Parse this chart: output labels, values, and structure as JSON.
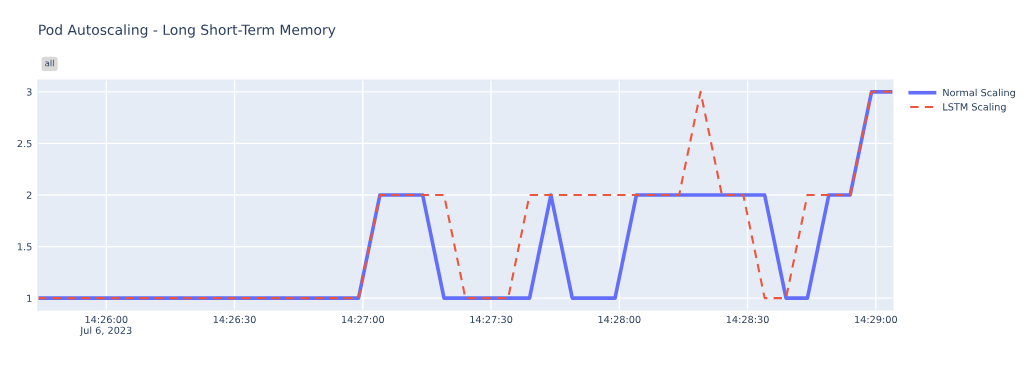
{
  "chart_data": {
    "type": "line",
    "title": "Pod Autoscaling - Long Short-Term Memory",
    "annotations": [
      "all"
    ],
    "x": [
      "2023-07-06T14:25:44",
      "2023-07-06T14:25:49",
      "2023-07-06T14:25:54",
      "2023-07-06T14:25:59",
      "2023-07-06T14:26:04",
      "2023-07-06T14:26:09",
      "2023-07-06T14:26:14",
      "2023-07-06T14:26:19",
      "2023-07-06T14:26:24",
      "2023-07-06T14:26:29",
      "2023-07-06T14:26:34",
      "2023-07-06T14:26:39",
      "2023-07-06T14:26:44",
      "2023-07-06T14:26:49",
      "2023-07-06T14:26:54",
      "2023-07-06T14:26:59",
      "2023-07-06T14:27:04",
      "2023-07-06T14:27:09",
      "2023-07-06T14:27:14",
      "2023-07-06T14:27:19",
      "2023-07-06T14:27:24",
      "2023-07-06T14:27:29",
      "2023-07-06T14:27:34",
      "2023-07-06T14:27:39",
      "2023-07-06T14:27:44",
      "2023-07-06T14:27:49",
      "2023-07-06T14:27:54",
      "2023-07-06T14:27:59",
      "2023-07-06T14:28:04",
      "2023-07-06T14:28:09",
      "2023-07-06T14:28:14",
      "2023-07-06T14:28:19",
      "2023-07-06T14:28:24",
      "2023-07-06T14:28:29",
      "2023-07-06T14:28:34",
      "2023-07-06T14:28:39",
      "2023-07-06T14:28:44",
      "2023-07-06T14:28:49",
      "2023-07-06T14:28:54",
      "2023-07-06T14:28:59",
      "2023-07-06T14:29:04"
    ],
    "series": [
      {
        "name": "Normal Scaling",
        "color": "#636efa",
        "line_style": "solid",
        "values": [
          1,
          1,
          1,
          1,
          1,
          1,
          1,
          1,
          1,
          1,
          1,
          1,
          1,
          1,
          1,
          1,
          2,
          2,
          2,
          1,
          1,
          1,
          1,
          1,
          2,
          1,
          1,
          1,
          2,
          2,
          2,
          2,
          2,
          2,
          2,
          1,
          1,
          2,
          2,
          3,
          3
        ]
      },
      {
        "name": "LSTM Scaling",
        "color": "#ef553b",
        "line_style": "dashed",
        "values": [
          1,
          1,
          1,
          1,
          1,
          1,
          1,
          1,
          1,
          1,
          1,
          1,
          1,
          1,
          1,
          1,
          2,
          2,
          2,
          2,
          1,
          1,
          1,
          2,
          2,
          2,
          2,
          2,
          2,
          2,
          2,
          3,
          2,
          2,
          1,
          1,
          2,
          2,
          2,
          3,
          3
        ]
      }
    ],
    "xlim": [
      "2023-07-06T14:25:44",
      "2023-07-06T14:29:04"
    ],
    "xticks": [
      {
        "value": "2023-07-06T14:26:00",
        "label": "14:26:00\nJul 6, 2023"
      },
      {
        "value": "2023-07-06T14:26:30",
        "label": "14:26:30"
      },
      {
        "value": "2023-07-06T14:27:00",
        "label": "14:27:00"
      },
      {
        "value": "2023-07-06T14:27:30",
        "label": "14:27:30"
      },
      {
        "value": "2023-07-06T14:28:00",
        "label": "14:28:00"
      },
      {
        "value": "2023-07-06T14:28:30",
        "label": "14:28:30"
      },
      {
        "value": "2023-07-06T14:29:00",
        "label": "14:29:00"
      }
    ],
    "ylim": [
      0.885,
      3.115
    ],
    "yticks": [
      1,
      1.5,
      2,
      2.5,
      3
    ],
    "grid": true,
    "legend": "top right",
    "marker": "none"
  }
}
